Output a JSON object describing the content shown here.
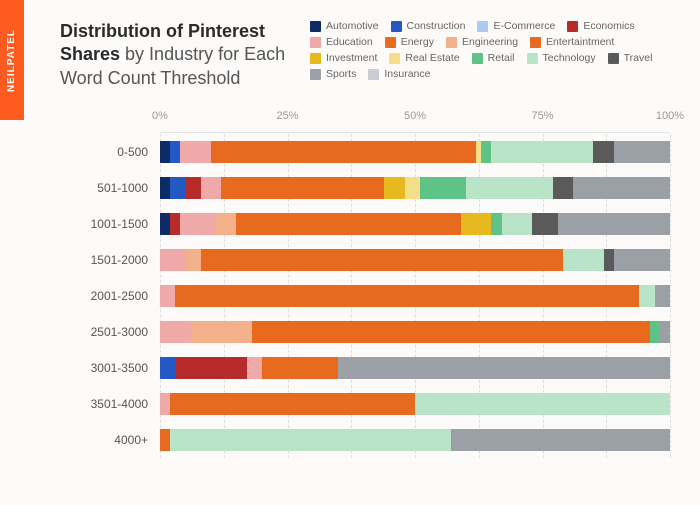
{
  "brand": "NEILPATEL",
  "title_bold": "Distribution of Pinterest Shares",
  "title_light": " by Industry for Each Word Count Threshold",
  "legend": [
    {
      "label": "Automotive",
      "color": "#0d2b66"
    },
    {
      "label": "Construction",
      "color": "#2458c4"
    },
    {
      "label": "E-Commerce",
      "color": "#aec9f1"
    },
    {
      "label": "Economics",
      "color": "#b82b2b"
    },
    {
      "label": "Education",
      "color": "#f0a9a9"
    },
    {
      "label": "Energy",
      "color": "#e86a1f"
    },
    {
      "label": "Engineering",
      "color": "#f3b08a"
    },
    {
      "label": "Entertaintment",
      "color": "#e86a1f"
    },
    {
      "label": "Investment",
      "color": "#e8b81f"
    },
    {
      "label": "Real Estate",
      "color": "#f5de8a"
    },
    {
      "label": "Retail",
      "color": "#5fc286"
    },
    {
      "label": "Technology",
      "color": "#b9e4c7"
    },
    {
      "label": "Travel",
      "color": "#5a5a5a"
    },
    {
      "label": "Sports",
      "color": "#9aa0a6"
    },
    {
      "label": "Insurance",
      "color": "#c9ccd0"
    }
  ],
  "chart": {
    "type": "stacked-horizontal-bar-100",
    "background_color": "#fdfbf9",
    "grid_color": "#dddddd",
    "label_fontsize": 12,
    "axis_fontsize": 11,
    "xticks": [
      {
        "pos": 0,
        "label": "0%"
      },
      {
        "pos": 25,
        "label": "25%"
      },
      {
        "pos": 50,
        "label": "50%"
      },
      {
        "pos": 75,
        "label": "75%"
      },
      {
        "pos": 100,
        "label": "100%"
      }
    ],
    "grid_positions": [
      0,
      12.5,
      25,
      37.5,
      50,
      62.5,
      75,
      87.5,
      100
    ],
    "categories": [
      "0-500",
      "501-1000",
      "1001-1500",
      "1501-2000",
      "2001-2500",
      "2501-3000",
      "3001-3500",
      "3501-4000",
      "4000+"
    ],
    "rows": [
      {
        "segments": [
          {
            "color": "#0d2b66",
            "pct": 2
          },
          {
            "color": "#2458c4",
            "pct": 2
          },
          {
            "color": "#f0a9a9",
            "pct": 6
          },
          {
            "color": "#e86a1f",
            "pct": 52
          },
          {
            "color": "#f5de8a",
            "pct": 1
          },
          {
            "color": "#5fc286",
            "pct": 2
          },
          {
            "color": "#b9e4c7",
            "pct": 20
          },
          {
            "color": "#5a5a5a",
            "pct": 4
          },
          {
            "color": "#9aa0a6",
            "pct": 11
          }
        ]
      },
      {
        "segments": [
          {
            "color": "#0d2b66",
            "pct": 2
          },
          {
            "color": "#2458c4",
            "pct": 3
          },
          {
            "color": "#b82b2b",
            "pct": 3
          },
          {
            "color": "#f0a9a9",
            "pct": 4
          },
          {
            "color": "#e86a1f",
            "pct": 32
          },
          {
            "color": "#e8b81f",
            "pct": 4
          },
          {
            "color": "#f5de8a",
            "pct": 3
          },
          {
            "color": "#5fc286",
            "pct": 9
          },
          {
            "color": "#b9e4c7",
            "pct": 17
          },
          {
            "color": "#5a5a5a",
            "pct": 4
          },
          {
            "color": "#9aa0a6",
            "pct": 19
          }
        ]
      },
      {
        "segments": [
          {
            "color": "#0d2b66",
            "pct": 2
          },
          {
            "color": "#b82b2b",
            "pct": 2
          },
          {
            "color": "#f0a9a9",
            "pct": 7
          },
          {
            "color": "#f3b08a",
            "pct": 4
          },
          {
            "color": "#e86a1f",
            "pct": 44
          },
          {
            "color": "#e8b81f",
            "pct": 6
          },
          {
            "color": "#5fc286",
            "pct": 2
          },
          {
            "color": "#b9e4c7",
            "pct": 6
          },
          {
            "color": "#5a5a5a",
            "pct": 5
          },
          {
            "color": "#9aa0a6",
            "pct": 22
          }
        ]
      },
      {
        "segments": [
          {
            "color": "#f0a9a9",
            "pct": 5
          },
          {
            "color": "#f3b08a",
            "pct": 3
          },
          {
            "color": "#e86a1f",
            "pct": 71
          },
          {
            "color": "#b9e4c7",
            "pct": 8
          },
          {
            "color": "#5a5a5a",
            "pct": 2
          },
          {
            "color": "#9aa0a6",
            "pct": 11
          }
        ]
      },
      {
        "segments": [
          {
            "color": "#f0a9a9",
            "pct": 3
          },
          {
            "color": "#e86a1f",
            "pct": 91
          },
          {
            "color": "#b9e4c7",
            "pct": 3
          },
          {
            "color": "#9aa0a6",
            "pct": 3
          }
        ]
      },
      {
        "segments": [
          {
            "color": "#f0a9a9",
            "pct": 6
          },
          {
            "color": "#f3b08a",
            "pct": 12
          },
          {
            "color": "#e86a1f",
            "pct": 78
          },
          {
            "color": "#5fc286",
            "pct": 2
          },
          {
            "color": "#9aa0a6",
            "pct": 2
          }
        ]
      },
      {
        "segments": [
          {
            "color": "#2458c4",
            "pct": 3
          },
          {
            "color": "#b82b2b",
            "pct": 14
          },
          {
            "color": "#f0a9a9",
            "pct": 3
          },
          {
            "color": "#e86a1f",
            "pct": 15
          },
          {
            "color": "#9aa0a6",
            "pct": 65
          }
        ]
      },
      {
        "segments": [
          {
            "color": "#f0a9a9",
            "pct": 2
          },
          {
            "color": "#e86a1f",
            "pct": 48
          },
          {
            "color": "#b9e4c7",
            "pct": 50
          }
        ]
      },
      {
        "segments": [
          {
            "color": "#e86a1f",
            "pct": 2
          },
          {
            "color": "#b9e4c7",
            "pct": 55
          },
          {
            "color": "#9aa0a6",
            "pct": 43
          }
        ]
      }
    ]
  }
}
